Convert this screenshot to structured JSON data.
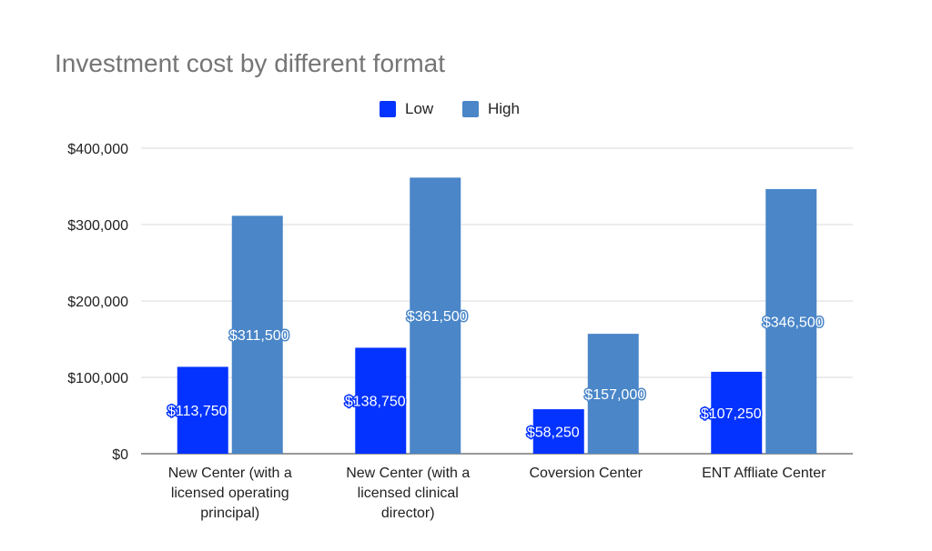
{
  "chart_data": {
    "type": "bar",
    "title": "Investment cost by different format",
    "categories": [
      [
        "New Center (with a",
        "licensed operating",
        "principal)"
      ],
      [
        "New Center (with a",
        "licensed clinical",
        "director)"
      ],
      [
        "Coversion Center"
      ],
      [
        "ENT Affliate Center"
      ]
    ],
    "series": [
      {
        "name": "Low",
        "color": "#0433ff",
        "values": [
          113750,
          138750,
          58250,
          107250
        ],
        "labels": [
          "$113,750",
          "$138,750",
          "$58,250",
          "$107,250"
        ]
      },
      {
        "name": "High",
        "color": "#4a86c8",
        "values": [
          311500,
          361500,
          157000,
          346500
        ],
        "labels": [
          "$311,500",
          "$361,500",
          "$157,000",
          "$346,500"
        ]
      }
    ],
    "ylim": [
      0,
      400000
    ],
    "y_ticks": [
      0,
      100000,
      200000,
      300000,
      400000
    ],
    "y_tick_labels": [
      "$0",
      "$100,000",
      "$200,000",
      "$300,000",
      "$400,000"
    ],
    "xlabel": "",
    "ylabel": "",
    "grid": true,
    "legend_position": "top-center"
  }
}
